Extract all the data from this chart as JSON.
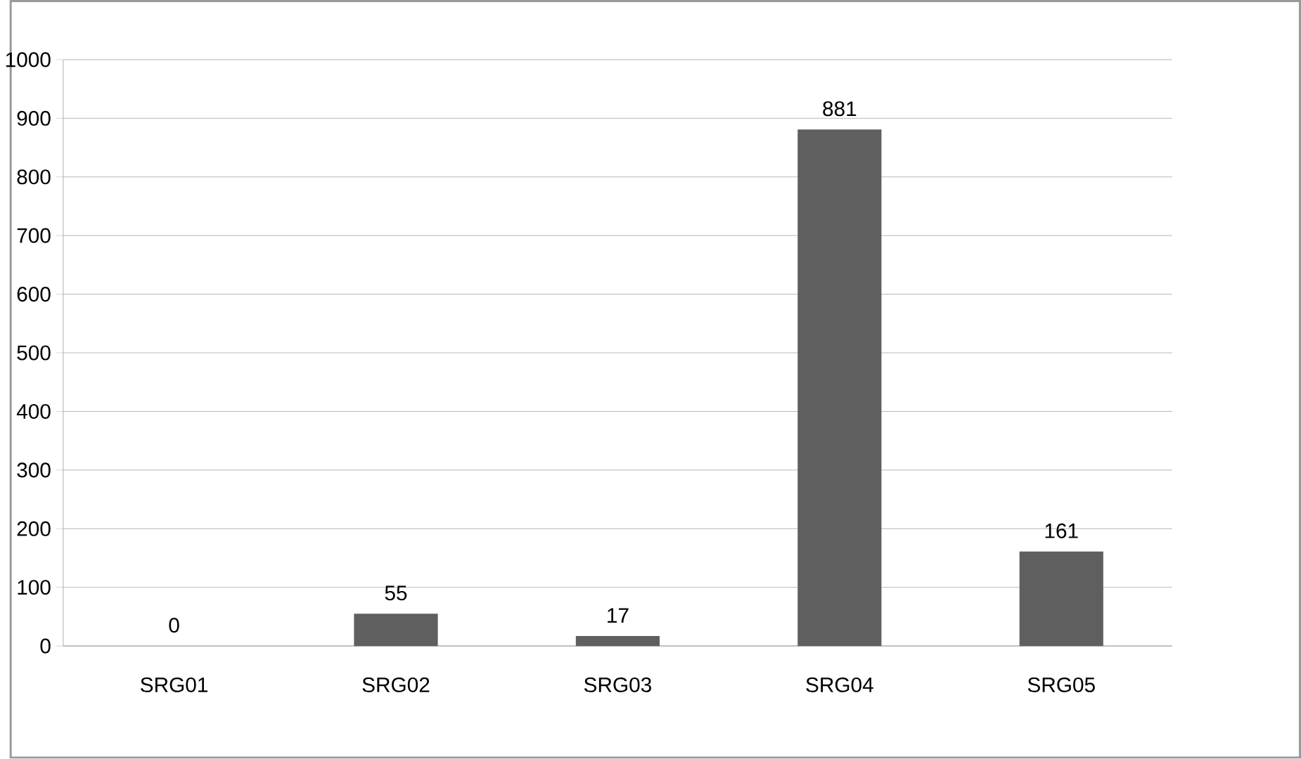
{
  "chart_data": {
    "type": "bar",
    "categories": [
      "SRG01",
      "SRG02",
      "SRG03",
      "SRG04",
      "SRG05"
    ],
    "values": [
      0,
      55,
      17,
      881,
      161
    ],
    "color": "#5f5f5f",
    "ylim": [
      0,
      1000
    ],
    "yticks": [
      0,
      100,
      200,
      300,
      400,
      500,
      600,
      700,
      800,
      900,
      1000
    ],
    "grid": "y",
    "data_labels": true
  }
}
